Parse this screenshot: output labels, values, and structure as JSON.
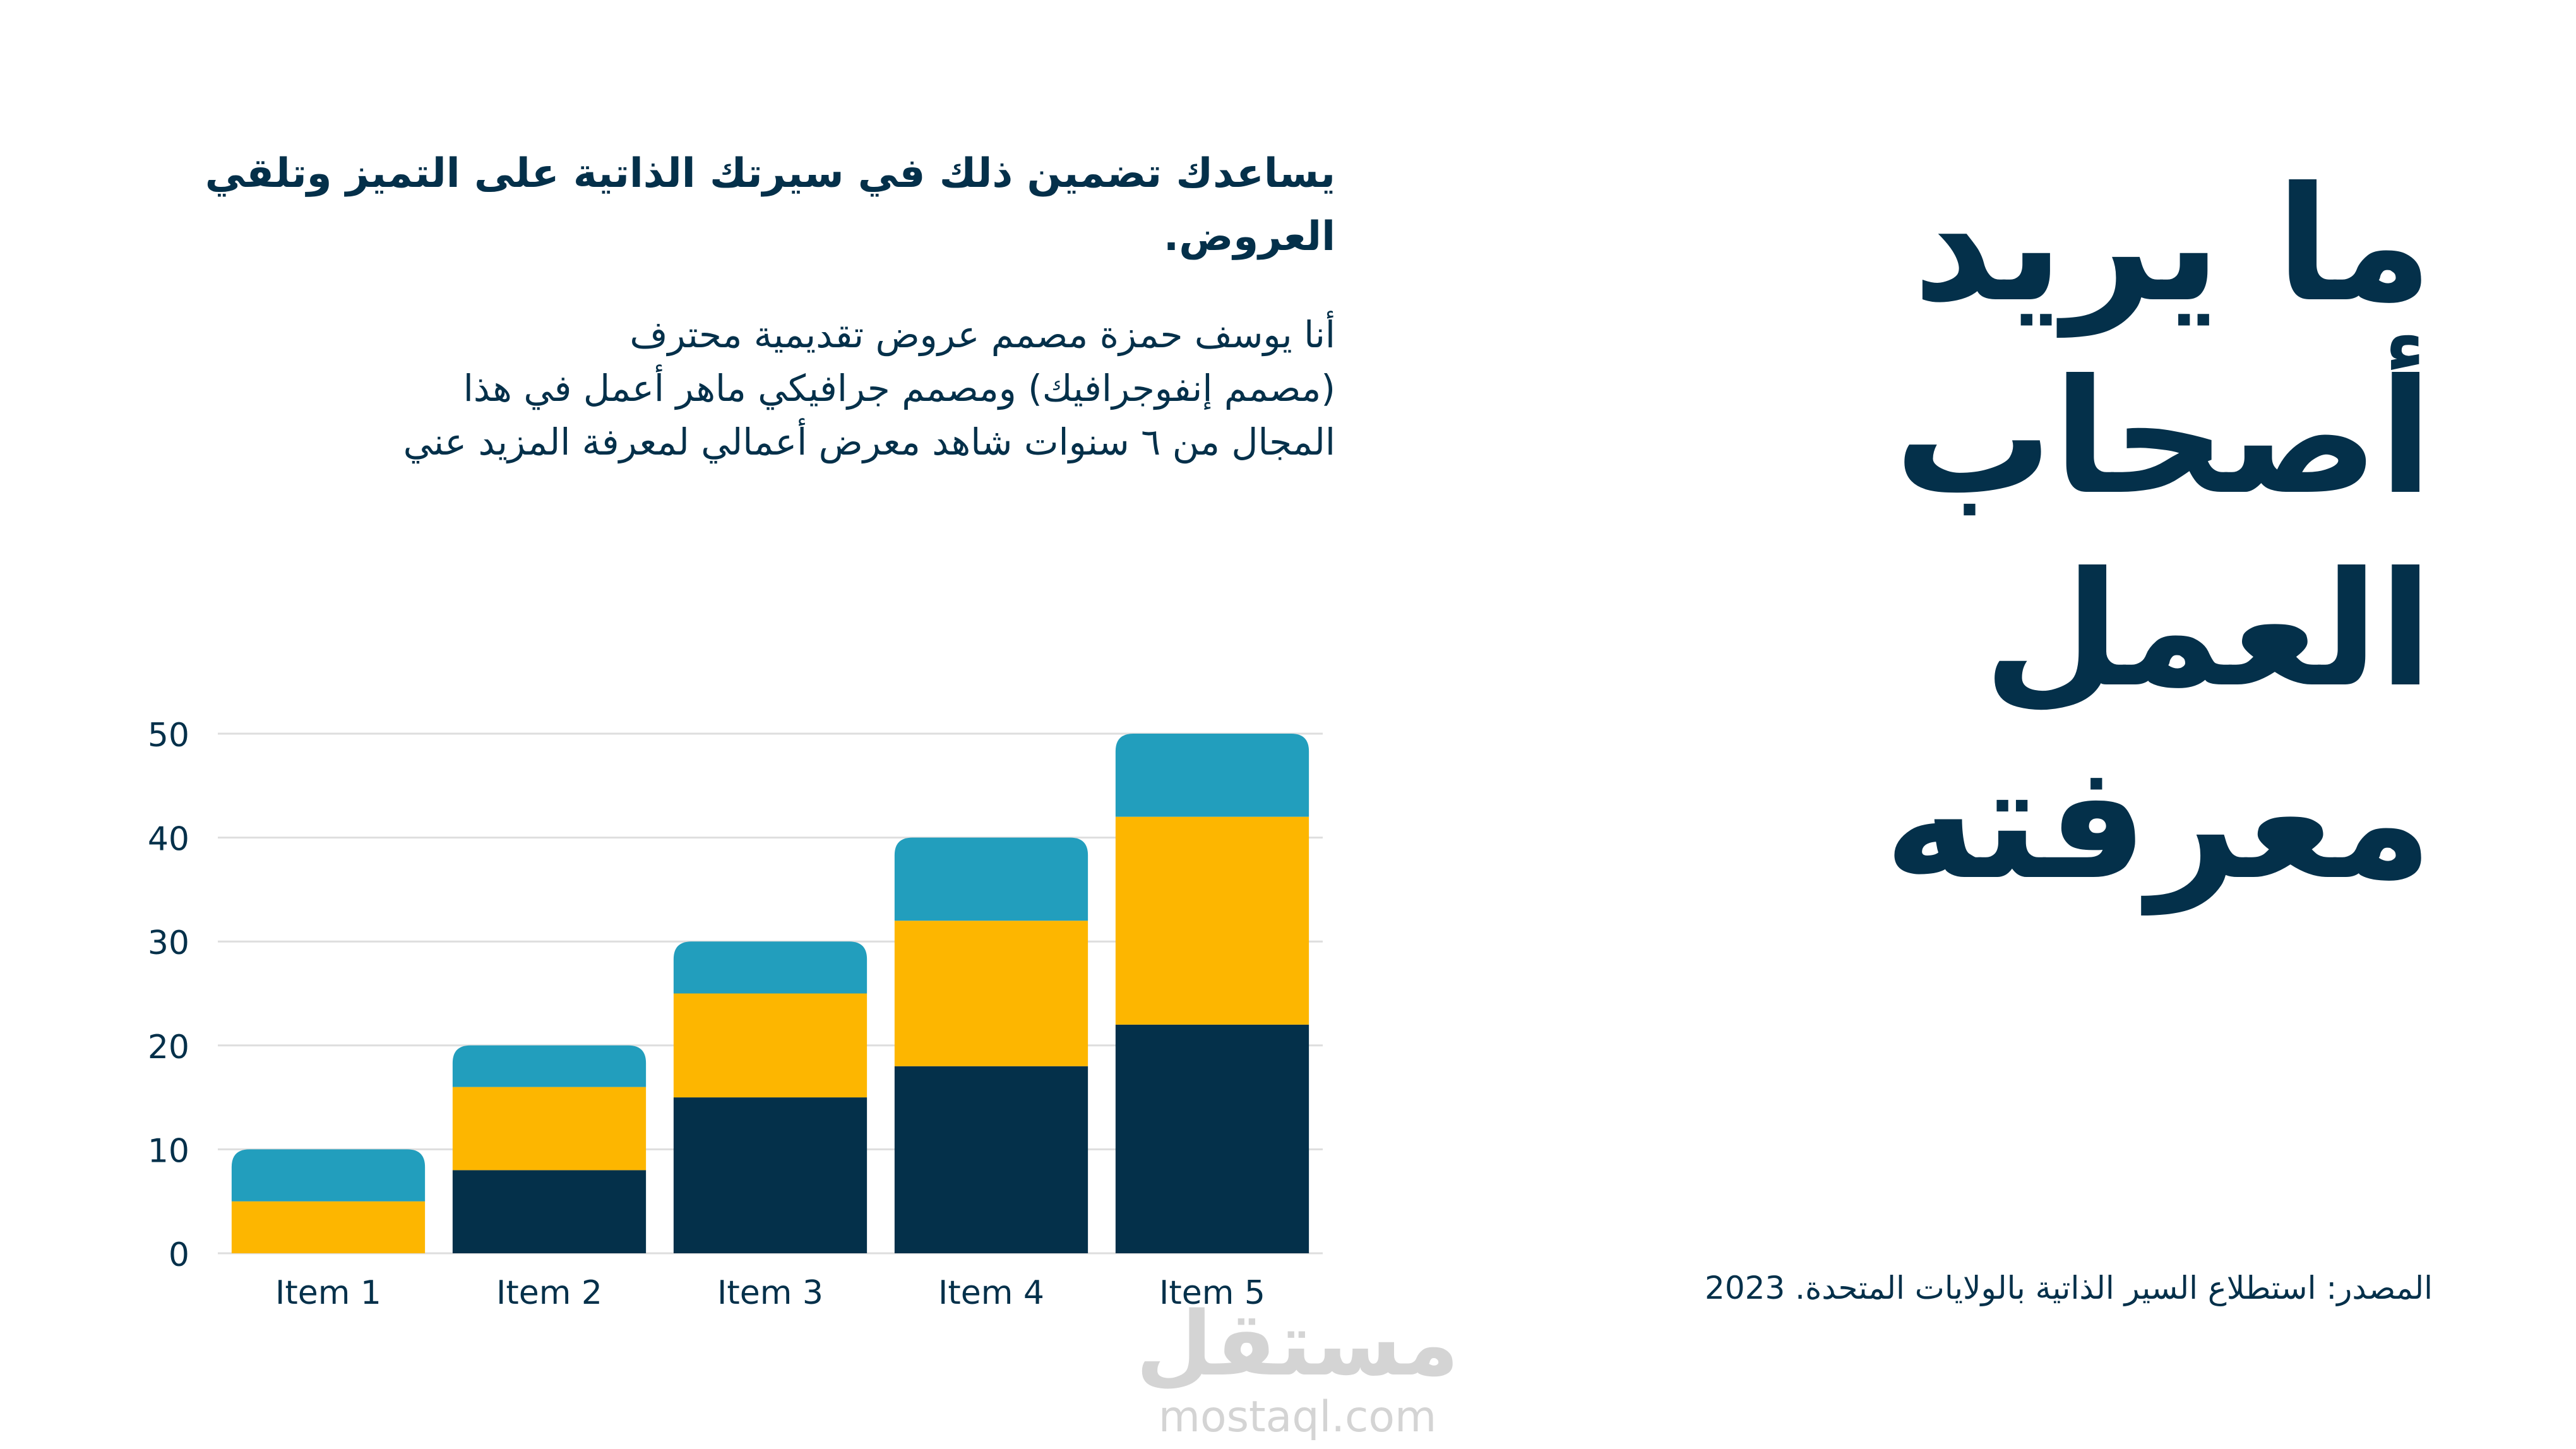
{
  "heading": {
    "title_lines": [
      "ما يريد",
      "أصحاب العمل",
      "معرفته"
    ],
    "subtitle": "يساعدك تضمين ذلك في سيرتك الذاتية على التميز وتلقي العروض.",
    "body_lines": [
      "أنا يوسف حمزة مصمم عروض تقديمية محترف",
      "(مصمم إنفوجرافيك) ومصمم جرافيكي ماهر أعمل في هذا",
      "المجال من ٦ سنوات شاهد معرض أعمالي لمعرفة المزيد عني"
    ],
    "source": "المصدر: استطلاع السير الذاتية بالولايات المتحدة. 2023"
  },
  "watermark": {
    "logo": "مستقل",
    "domain": "mostaql.com"
  },
  "colors": {
    "navy": "#04304a",
    "gold": "#fdb600",
    "teal": "#229ebd",
    "grid": "#dedede"
  },
  "chart_data": {
    "type": "bar",
    "stacked": true,
    "categories": [
      "Item 1",
      "Item 2",
      "Item 3",
      "Item 4",
      "Item 5"
    ],
    "series": [
      {
        "name": "",
        "color": "#04304a",
        "values": [
          0,
          8,
          15,
          18,
          22
        ]
      },
      {
        "name": "",
        "color": "#fdb600",
        "values": [
          5,
          8,
          10,
          14,
          20
        ]
      },
      {
        "name": "",
        "color": "#229ebd",
        "values": [
          5,
          4,
          5,
          8,
          8
        ]
      }
    ],
    "ylim": [
      0,
      50
    ],
    "yticks": [
      "0",
      "10",
      "20",
      "30",
      "40",
      "50"
    ],
    "grid": true,
    "legend": "none",
    "title": "",
    "xlabel": "",
    "ylabel": ""
  }
}
